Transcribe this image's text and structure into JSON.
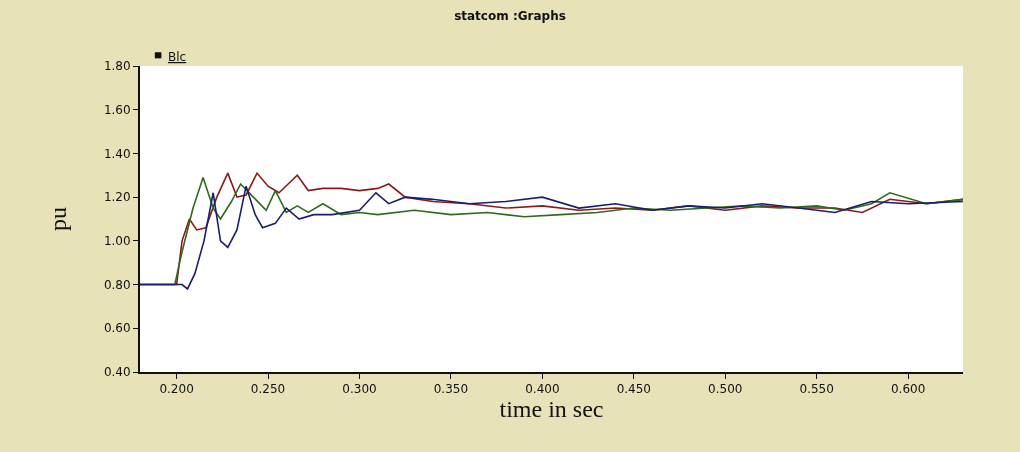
{
  "chart_data": {
    "type": "line",
    "title": "statcom :Graphs",
    "xlabel": "time in sec",
    "ylabel": "pu",
    "annotations": [
      "Blc"
    ],
    "xlim": [
      0.18,
      0.63
    ],
    "xticks": [
      {
        "value": 0.2,
        "label": "0.200"
      },
      {
        "value": 0.25,
        "label": "0.250"
      },
      {
        "value": 0.3,
        "label": "0.300"
      },
      {
        "value": 0.35,
        "label": "0.350"
      },
      {
        "value": 0.4,
        "label": "0.400"
      },
      {
        "value": 0.45,
        "label": "0.450"
      },
      {
        "value": 0.5,
        "label": "0.500"
      },
      {
        "value": 0.55,
        "label": "0.550"
      },
      {
        "value": 0.6,
        "label": "0.600"
      }
    ],
    "ylim": [
      0.4,
      1.8
    ],
    "yticks": [
      {
        "value": 0.4,
        "label": "0.40"
      },
      {
        "value": 0.6,
        "label": "0.60"
      },
      {
        "value": 0.8,
        "label": "0.80"
      },
      {
        "value": 1.0,
        "label": "1.00"
      },
      {
        "value": 1.2,
        "label": "1.20"
      },
      {
        "value": 1.4,
        "label": "1.40"
      },
      {
        "value": 1.6,
        "label": "1.60"
      },
      {
        "value": 1.8,
        "label": "1.80"
      }
    ],
    "marker": "none",
    "line_style": "solid",
    "series": [
      {
        "color": "#8b1a1a",
        "x": [
          0.18,
          0.2,
          0.203,
          0.207,
          0.211,
          0.216,
          0.222,
          0.228,
          0.233,
          0.238,
          0.244,
          0.25,
          0.256,
          0.261,
          0.266,
          0.272,
          0.28,
          0.29,
          0.3,
          0.31,
          0.316,
          0.325,
          0.34,
          0.36,
          0.38,
          0.4,
          0.42,
          0.44,
          0.46,
          0.48,
          0.5,
          0.52,
          0.54,
          0.56,
          0.575,
          0.59,
          0.61,
          0.63
        ],
        "values": [
          0.8,
          0.8,
          1.0,
          1.1,
          1.05,
          1.06,
          1.2,
          1.31,
          1.2,
          1.21,
          1.31,
          1.25,
          1.22,
          1.26,
          1.3,
          1.23,
          1.24,
          1.24,
          1.23,
          1.24,
          1.26,
          1.2,
          1.18,
          1.17,
          1.15,
          1.16,
          1.14,
          1.15,
          1.14,
          1.16,
          1.14,
          1.16,
          1.15,
          1.15,
          1.13,
          1.19,
          1.17,
          1.19
        ]
      },
      {
        "color": "#2e6b1e",
        "x": [
          0.18,
          0.199,
          0.203,
          0.209,
          0.2145,
          0.22,
          0.224,
          0.23,
          0.235,
          0.242,
          0.249,
          0.254,
          0.26,
          0.266,
          0.272,
          0.28,
          0.29,
          0.3,
          0.31,
          0.33,
          0.35,
          0.37,
          0.39,
          0.41,
          0.43,
          0.45,
          0.47,
          0.49,
          0.51,
          0.53,
          0.55,
          0.565,
          0.58,
          0.59,
          0.61,
          0.63
        ],
        "values": [
          0.8,
          0.8,
          0.95,
          1.15,
          1.29,
          1.15,
          1.1,
          1.18,
          1.26,
          1.2,
          1.14,
          1.23,
          1.13,
          1.16,
          1.13,
          1.17,
          1.12,
          1.13,
          1.12,
          1.14,
          1.12,
          1.13,
          1.11,
          1.12,
          1.13,
          1.15,
          1.14,
          1.15,
          1.16,
          1.15,
          1.16,
          1.14,
          1.17,
          1.22,
          1.17,
          1.19
        ]
      },
      {
        "color": "#1a1f6b",
        "x": [
          0.18,
          0.203,
          0.206,
          0.21,
          0.215,
          0.22,
          0.224,
          0.228,
          0.233,
          0.238,
          0.243,
          0.247,
          0.254,
          0.26,
          0.267,
          0.275,
          0.285,
          0.3,
          0.309,
          0.316,
          0.325,
          0.34,
          0.36,
          0.38,
          0.4,
          0.42,
          0.44,
          0.46,
          0.48,
          0.5,
          0.52,
          0.54,
          0.56,
          0.58,
          0.6,
          0.63
        ],
        "values": [
          0.8,
          0.8,
          0.78,
          0.85,
          1.0,
          1.22,
          1.0,
          0.97,
          1.05,
          1.25,
          1.12,
          1.06,
          1.08,
          1.15,
          1.1,
          1.12,
          1.12,
          1.14,
          1.22,
          1.17,
          1.2,
          1.19,
          1.17,
          1.18,
          1.2,
          1.15,
          1.17,
          1.14,
          1.16,
          1.15,
          1.17,
          1.15,
          1.13,
          1.18,
          1.17,
          1.18
        ]
      }
    ]
  }
}
